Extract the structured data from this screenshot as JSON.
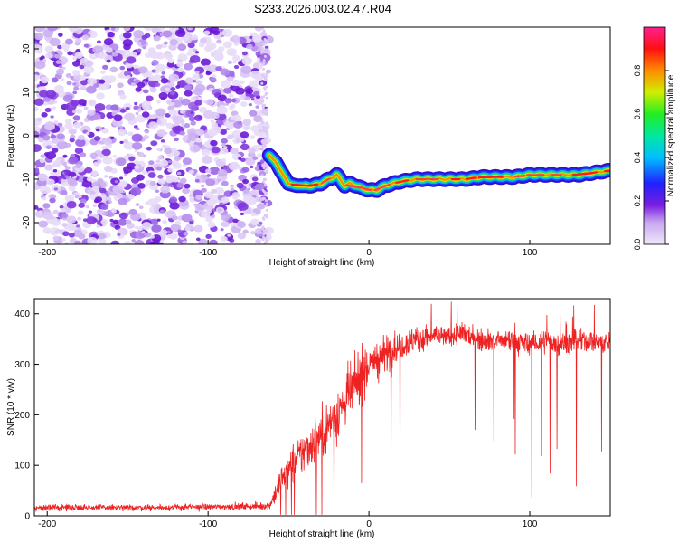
{
  "title": "S233.2026.003.02.47.R04",
  "chart_data": [
    {
      "type": "heatmap",
      "xlabel": "Height of straight line (km)",
      "ylabel": "Frequency (Hz)",
      "xlim": [
        -208,
        150
      ],
      "ylim": [
        -25,
        25
      ],
      "x_ticks": [
        -200,
        -100,
        0,
        100
      ],
      "y_ticks": [
        -20,
        -10,
        0,
        10,
        20
      ],
      "grid": false,
      "colorbar": {
        "label": "Normalized spectral amplitude",
        "range": [
          0,
          1
        ],
        "ticks": [
          "0.0",
          "0.2",
          "0.4",
          "0.6",
          "0.8"
        ]
      },
      "noise_region": {
        "x_from": -208,
        "x_to": -62,
        "freq_from": -25,
        "freq_to": 25,
        "amplitude": 0.12
      },
      "signal_track": {
        "x": [
          -62,
          -58,
          -55,
          -50,
          -45,
          -40,
          -35,
          -30,
          -25,
          -22,
          -20,
          -18,
          -15,
          -12,
          -8,
          -5,
          0,
          5,
          10,
          15,
          20,
          30,
          40,
          50,
          60,
          70,
          80,
          90,
          100,
          110,
          120,
          130,
          140,
          150
        ],
        "freq": [
          -4.5,
          -6,
          -8,
          -11,
          -11.5,
          -11.5,
          -11.5,
          -11,
          -10,
          -9.5,
          -9,
          -10,
          -11.5,
          -11,
          -11.5,
          -12,
          -12.5,
          -12.5,
          -11.5,
          -11,
          -10.5,
          -10,
          -10,
          -10,
          -10,
          -9.5,
          -9.5,
          -9.5,
          -9,
          -9,
          -9,
          -9,
          -8.5,
          -8
        ]
      }
    },
    {
      "type": "line",
      "xlabel": "Height of straight line (km)",
      "ylabel": "SNR (10 * v/v)",
      "xlim": [
        -208,
        150
      ],
      "ylim": [
        0,
        430
      ],
      "x_ticks": [
        -200,
        -100,
        0,
        100
      ],
      "y_ticks": [
        0,
        100,
        200,
        300,
        400
      ],
      "series_color": "#ee2222",
      "series": [
        {
          "x": [
            -208,
            -180,
            -150,
            -120,
            -90,
            -70,
            -62,
            -58,
            -55,
            -50,
            -45,
            -40,
            -35,
            -30,
            -25,
            -20,
            -15,
            -10,
            -5,
            0,
            5,
            10,
            15,
            20,
            25,
            30,
            40,
            50,
            60,
            70,
            80,
            90,
            100,
            110,
            120,
            130,
            140,
            150
          ],
          "y": [
            16,
            17,
            16,
            17,
            18,
            19,
            20,
            45,
            70,
            90,
            110,
            130,
            145,
            160,
            180,
            200,
            225,
            250,
            280,
            300,
            310,
            320,
            330,
            340,
            345,
            350,
            355,
            355,
            360,
            350,
            345,
            345,
            340,
            345,
            340,
            345,
            345,
            340
          ],
          "noise": [
            7,
            7,
            7,
            7,
            7,
            8,
            8,
            25,
            35,
            40,
            45,
            50,
            50,
            55,
            55,
            60,
            60,
            60,
            60,
            55,
            50,
            45,
            40,
            35,
            30,
            30,
            25,
            25,
            25,
            25,
            25,
            25,
            25,
            25,
            25,
            25,
            25,
            25
          ]
        }
      ]
    }
  ]
}
